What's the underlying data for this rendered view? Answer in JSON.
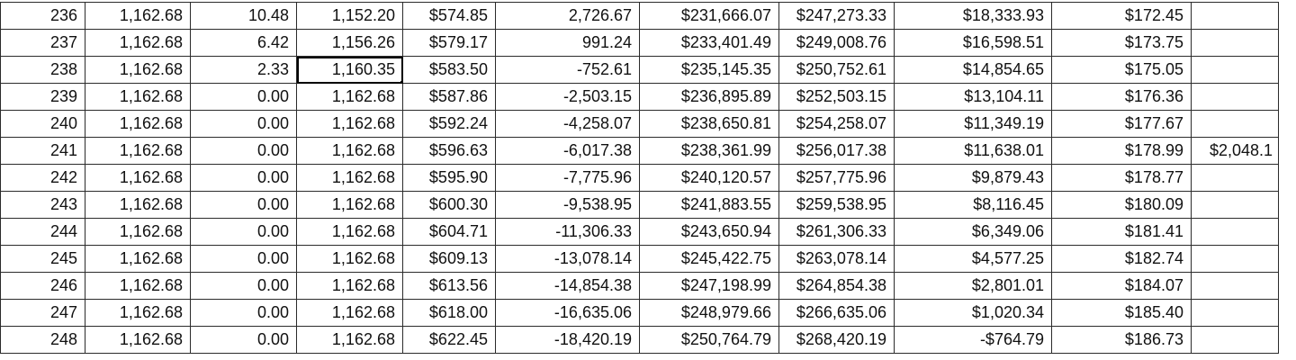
{
  "sheet": {
    "rows": [
      {
        "n": "236",
        "a": "1,162.68",
        "b": "10.48",
        "c": "1,152.20",
        "d": "$574.85",
        "e": "2,726.67",
        "f": "$231,666.07",
        "g": "$247,273.33",
        "h": "$18,333.93",
        "i": "$172.45",
        "j": ""
      },
      {
        "n": "237",
        "a": "1,162.68",
        "b": "6.42",
        "c": "1,156.26",
        "d": "$579.17",
        "e": "991.24",
        "f": "$233,401.49",
        "g": "$249,008.76",
        "h": "$16,598.51",
        "i": "$173.75",
        "j": ""
      },
      {
        "n": "238",
        "a": "1,162.68",
        "b": "2.33",
        "c": "1,160.35",
        "d": "$583.50",
        "e": "-752.61",
        "f": "$235,145.35",
        "g": "$250,752.61",
        "h": "$14,854.65",
        "i": "$175.05",
        "j": ""
      },
      {
        "n": "239",
        "a": "1,162.68",
        "b": "0.00",
        "c": "1,162.68",
        "d": "$587.86",
        "e": "-2,503.15",
        "f": "$236,895.89",
        "g": "$252,503.15",
        "h": "$13,104.11",
        "i": "$176.36",
        "j": ""
      },
      {
        "n": "240",
        "a": "1,162.68",
        "b": "0.00",
        "c": "1,162.68",
        "d": "$592.24",
        "e": "-4,258.07",
        "f": "$238,650.81",
        "g": "$254,258.07",
        "h": "$11,349.19",
        "i": "$177.67",
        "j": ""
      },
      {
        "n": "241",
        "a": "1,162.68",
        "b": "0.00",
        "c": "1,162.68",
        "d": "$596.63",
        "e": "-6,017.38",
        "f": "$238,361.99",
        "g": "$256,017.38",
        "h": "$11,638.01",
        "i": "$178.99",
        "j": "$2,048.1"
      },
      {
        "n": "242",
        "a": "1,162.68",
        "b": "0.00",
        "c": "1,162.68",
        "d": "$595.90",
        "e": "-7,775.96",
        "f": "$240,120.57",
        "g": "$257,775.96",
        "h": "$9,879.43",
        "i": "$178.77",
        "j": ""
      },
      {
        "n": "243",
        "a": "1,162.68",
        "b": "0.00",
        "c": "1,162.68",
        "d": "$600.30",
        "e": "-9,538.95",
        "f": "$241,883.55",
        "g": "$259,538.95",
        "h": "$8,116.45",
        "i": "$180.09",
        "j": ""
      },
      {
        "n": "244",
        "a": "1,162.68",
        "b": "0.00",
        "c": "1,162.68",
        "d": "$604.71",
        "e": "-11,306.33",
        "f": "$243,650.94",
        "g": "$261,306.33",
        "h": "$6,349.06",
        "i": "$181.41",
        "j": ""
      },
      {
        "n": "245",
        "a": "1,162.68",
        "b": "0.00",
        "c": "1,162.68",
        "d": "$609.13",
        "e": "-13,078.14",
        "f": "$245,422.75",
        "g": "$263,078.14",
        "h": "$4,577.25",
        "i": "$182.74",
        "j": ""
      },
      {
        "n": "246",
        "a": "1,162.68",
        "b": "0.00",
        "c": "1,162.68",
        "d": "$613.56",
        "e": "-14,854.38",
        "f": "$247,198.99",
        "g": "$264,854.38",
        "h": "$2,801.01",
        "i": "$184.07",
        "j": ""
      },
      {
        "n": "247",
        "a": "1,162.68",
        "b": "0.00",
        "c": "1,162.68",
        "d": "$618.00",
        "e": "-16,635.06",
        "f": "$248,979.66",
        "g": "$266,635.06",
        "h": "$1,020.34",
        "i": "$185.40",
        "j": ""
      },
      {
        "n": "248",
        "a": "1,162.68",
        "b": "0.00",
        "c": "1,162.68",
        "d": "$622.45",
        "e": "-18,420.19",
        "f": "$250,764.79",
        "g": "$268,420.19",
        "h": "-$764.79",
        "i": "$186.73",
        "j": ""
      }
    ],
    "selected_cell": {
      "row": 2,
      "col": "c"
    },
    "colors": {
      "grid_line": "#2b2b2b",
      "text": "#111111",
      "negative_currency": "#e0281c",
      "selection": "#000000"
    }
  }
}
